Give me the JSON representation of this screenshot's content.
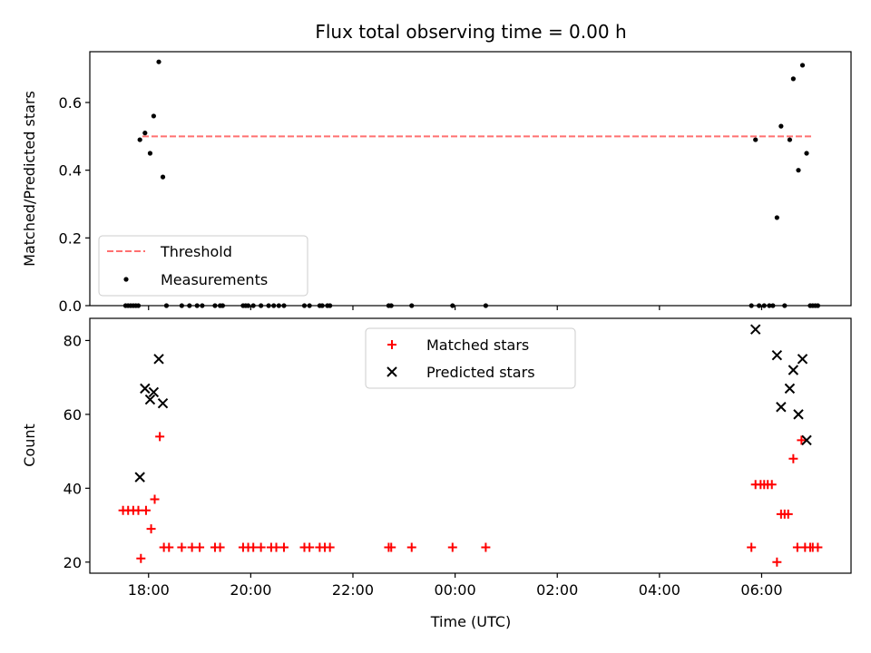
{
  "chart_data": {
    "title": "Flux total observing time = 0.00 h",
    "xlabel": "Time (UTC)",
    "x_unit": "hours (UTC clock, values past 24 are next day)",
    "xlim": [
      16.85,
      31.75
    ],
    "xticks": [
      {
        "v": 18,
        "label": "18:00"
      },
      {
        "v": 20,
        "label": "20:00"
      },
      {
        "v": 22,
        "label": "22:00"
      },
      {
        "v": 24,
        "label": "00:00"
      },
      {
        "v": 26,
        "label": "02:00"
      },
      {
        "v": 28,
        "label": "04:00"
      },
      {
        "v": 30,
        "label": "06:00"
      }
    ],
    "panels": [
      {
        "type": "scatter",
        "ylabel": "Matched/Predicted stars",
        "ylim": [
          0,
          0.75
        ],
        "yticks": [
          {
            "v": 0,
            "label": "0.0"
          },
          {
            "v": 0.2,
            "label": "0.2"
          },
          {
            "v": 0.4,
            "label": "0.4"
          },
          {
            "v": 0.6,
            "label": "0.6"
          }
        ],
        "threshold": {
          "name": "Threshold",
          "value": 0.5,
          "x_range": [
            17.88,
            30.98
          ],
          "color": "#ff7070"
        },
        "legend": {
          "placement": "lower-left"
        },
        "series": [
          {
            "name": "Measurements",
            "color": "#000000",
            "marker": "dot",
            "points": [
              [
                17.55,
                0
              ],
              [
                17.6,
                0
              ],
              [
                17.65,
                0
              ],
              [
                17.7,
                0
              ],
              [
                17.75,
                0
              ],
              [
                17.8,
                0
              ],
              [
                17.83,
                0.49
              ],
              [
                17.93,
                0.51
              ],
              [
                18.03,
                0.45
              ],
              [
                18.1,
                0.56
              ],
              [
                18.2,
                0.72
              ],
              [
                18.28,
                0.38
              ],
              [
                18.35,
                0
              ],
              [
                18.65,
                0
              ],
              [
                18.8,
                0
              ],
              [
                18.95,
                0
              ],
              [
                19.05,
                0
              ],
              [
                19.3,
                0
              ],
              [
                19.4,
                0
              ],
              [
                19.45,
                0
              ],
              [
                19.85,
                0
              ],
              [
                19.9,
                0
              ],
              [
                19.95,
                0
              ],
              [
                20.05,
                0
              ],
              [
                20.2,
                0
              ],
              [
                20.35,
                0
              ],
              [
                20.45,
                0
              ],
              [
                20.55,
                0
              ],
              [
                20.65,
                0
              ],
              [
                21.05,
                0
              ],
              [
                21.15,
                0
              ],
              [
                21.35,
                0
              ],
              [
                21.4,
                0
              ],
              [
                21.5,
                0
              ],
              [
                21.55,
                0
              ],
              [
                22.7,
                0
              ],
              [
                22.75,
                0
              ],
              [
                23.15,
                0
              ],
              [
                23.95,
                0
              ],
              [
                24.6,
                0
              ],
              [
                29.8,
                0
              ],
              [
                29.88,
                0.49
              ],
              [
                29.95,
                0
              ],
              [
                30.05,
                0
              ],
              [
                30.15,
                0
              ],
              [
                30.22,
                0
              ],
              [
                30.3,
                0.26
              ],
              [
                30.38,
                0.53
              ],
              [
                30.45,
                0
              ],
              [
                30.55,
                0.49
              ],
              [
                30.62,
                0.67
              ],
              [
                30.72,
                0.4
              ],
              [
                30.8,
                0.71
              ],
              [
                30.88,
                0.45
              ],
              [
                30.95,
                0
              ],
              [
                31.0,
                0
              ],
              [
                31.05,
                0
              ],
              [
                31.1,
                0
              ]
            ]
          }
        ]
      },
      {
        "type": "scatter",
        "ylabel": "Count",
        "ylim": [
          17,
          86
        ],
        "yticks": [
          {
            "v": 20,
            "label": "20"
          },
          {
            "v": 40,
            "label": "40"
          },
          {
            "v": 60,
            "label": "60"
          },
          {
            "v": 80,
            "label": "80"
          }
        ],
        "legend": {
          "placement": "upper-center"
        },
        "series": [
          {
            "name": "Matched stars",
            "color": "#ff0000",
            "marker": "plus",
            "points": [
              [
                17.5,
                34
              ],
              [
                17.6,
                34
              ],
              [
                17.7,
                34
              ],
              [
                17.8,
                34
              ],
              [
                17.85,
                21
              ],
              [
                17.95,
                34
              ],
              [
                18.05,
                29
              ],
              [
                18.12,
                37
              ],
              [
                18.22,
                54
              ],
              [
                18.3,
                24
              ],
              [
                18.4,
                24
              ],
              [
                18.65,
                24
              ],
              [
                18.85,
                24
              ],
              [
                19.0,
                24
              ],
              [
                19.3,
                24
              ],
              [
                19.4,
                24
              ],
              [
                19.85,
                24
              ],
              [
                19.95,
                24
              ],
              [
                20.05,
                24
              ],
              [
                20.2,
                24
              ],
              [
                20.4,
                24
              ],
              [
                20.5,
                24
              ],
              [
                20.65,
                24
              ],
              [
                21.05,
                24
              ],
              [
                21.15,
                24
              ],
              [
                21.35,
                24
              ],
              [
                21.45,
                24
              ],
              [
                21.55,
                24
              ],
              [
                22.7,
                24
              ],
              [
                22.75,
                24
              ],
              [
                23.15,
                24
              ],
              [
                23.95,
                24
              ],
              [
                24.6,
                24
              ],
              [
                29.8,
                24
              ],
              [
                29.88,
                41
              ],
              [
                29.98,
                41
              ],
              [
                30.05,
                41
              ],
              [
                30.12,
                41
              ],
              [
                30.2,
                41
              ],
              [
                30.3,
                20
              ],
              [
                30.38,
                33
              ],
              [
                30.45,
                33
              ],
              [
                30.52,
                33
              ],
              [
                30.62,
                48
              ],
              [
                30.7,
                24
              ],
              [
                30.78,
                53
              ],
              [
                30.85,
                24
              ],
              [
                30.95,
                24
              ],
              [
                31.0,
                24
              ],
              [
                31.1,
                24
              ]
            ]
          },
          {
            "name": "Predicted stars",
            "color": "#000000",
            "marker": "x",
            "points": [
              [
                17.83,
                43
              ],
              [
                17.93,
                67
              ],
              [
                18.03,
                64
              ],
              [
                18.1,
                66
              ],
              [
                18.2,
                75
              ],
              [
                18.28,
                63
              ],
              [
                29.88,
                83
              ],
              [
                30.3,
                76
              ],
              [
                30.38,
                62
              ],
              [
                30.55,
                67
              ],
              [
                30.62,
                72
              ],
              [
                30.72,
                60
              ],
              [
                30.8,
                75
              ],
              [
                30.88,
                53
              ]
            ]
          }
        ]
      }
    ]
  }
}
